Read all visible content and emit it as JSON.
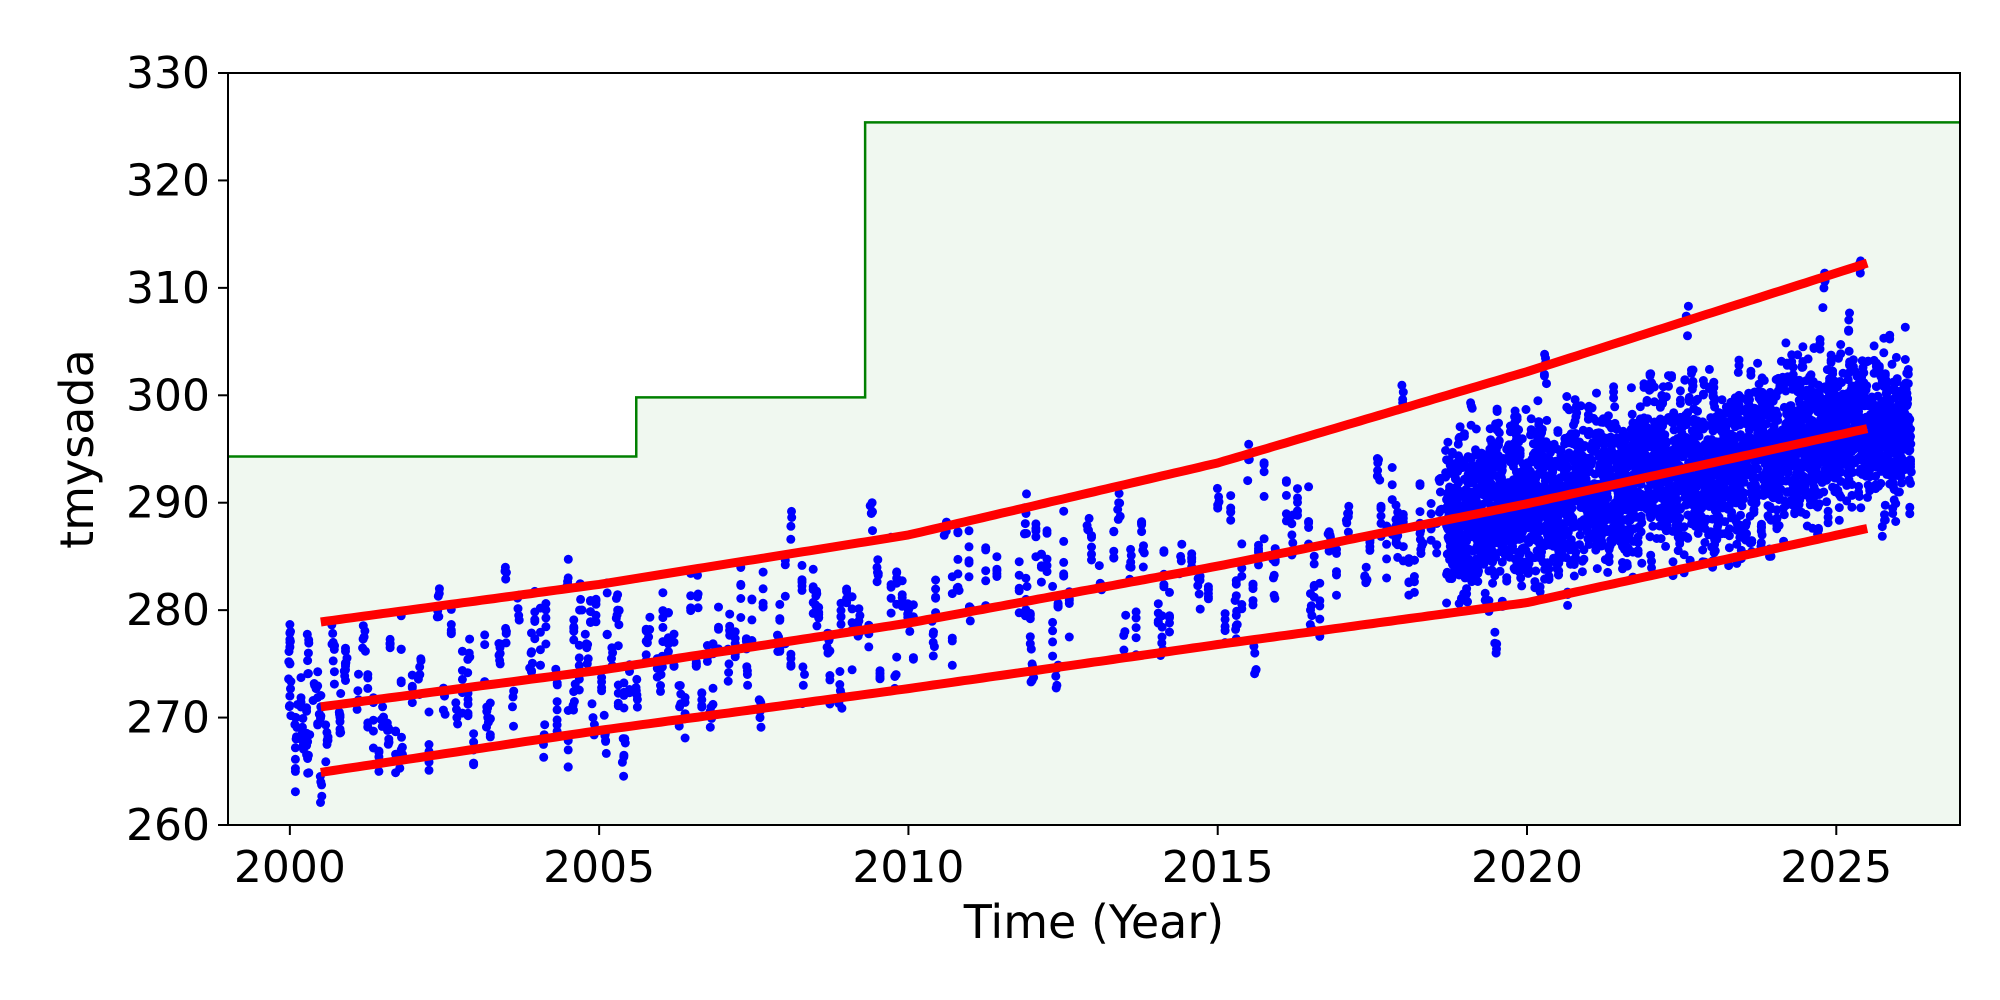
{
  "chart_data": {
    "type": "scatter",
    "title": "",
    "xlabel": "Time (Year)",
    "ylabel": "tmysada",
    "xlim": [
      1999.0,
      2027.0
    ],
    "ylim": [
      260,
      330
    ],
    "xticks": [
      2000,
      2005,
      2010,
      2015,
      2020,
      2025
    ],
    "yticks": [
      260,
      270,
      280,
      290,
      300,
      310,
      320,
      330
    ],
    "grid": false,
    "legend": "none",
    "colors": {
      "points": "#0000ff",
      "trend": "#ff0000",
      "limit_line": "#008000",
      "limit_fill": "#f0f8f0"
    },
    "limit_step": [
      {
        "x": 1999.0,
        "y": 294.3
      },
      {
        "x": 2005.6,
        "y": 294.3
      },
      {
        "x": 2005.6,
        "y": 299.8
      },
      {
        "x": 2009.3,
        "y": 299.8
      },
      {
        "x": 2009.3,
        "y": 325.4
      },
      {
        "x": 2027.0,
        "y": 325.4
      }
    ],
    "trend_lines": [
      {
        "x": [
          2000.5,
          2005,
          2010,
          2015,
          2020,
          2025.5
        ],
        "y": [
          278.9,
          282.4,
          287.0,
          293.7,
          302.2,
          312.3
        ]
      },
      {
        "x": [
          2000.5,
          2005,
          2010,
          2015,
          2020,
          2025.5
        ],
        "y": [
          271.0,
          274.4,
          278.8,
          284.1,
          289.9,
          296.9
        ]
      },
      {
        "x": [
          2000.5,
          2005,
          2010,
          2015,
          2020,
          2025.5
        ],
        "y": [
          264.9,
          268.8,
          272.7,
          276.8,
          280.7,
          287.6
        ]
      }
    ],
    "points_seed": 42,
    "points": [
      [
        2000.0,
        277.0
      ],
      [
        2000.0,
        272.0
      ],
      [
        2000.1,
        270.0
      ],
      [
        2000.2,
        268.5
      ],
      [
        2000.3,
        276.0
      ],
      [
        2000.3,
        266.5
      ],
      [
        2000.4,
        273.0
      ],
      [
        2000.5,
        264.0
      ],
      [
        2000.5,
        271.0
      ],
      [
        2000.6,
        267.5
      ],
      [
        2000.7,
        277.0
      ],
      [
        2000.8,
        270.5
      ],
      [
        2000.9,
        275.0
      ],
      [
        2001.1,
        272.5
      ],
      [
        2001.2,
        277.5
      ],
      [
        2001.5,
        271.0
      ],
      [
        2001.6,
        268.0
      ],
      [
        2001.8,
        267.0
      ],
      [
        2002.1,
        274.0
      ],
      [
        2002.4,
        281.3
      ],
      [
        2002.5,
        272.0
      ],
      [
        2002.7,
        270.0
      ],
      [
        2002.9,
        276.0
      ],
      [
        2003.2,
        270.0
      ],
      [
        2003.4,
        275.0
      ],
      [
        2003.5,
        283.5
      ],
      [
        2003.5,
        278.0
      ],
      [
        2003.6,
        271.0
      ],
      [
        2003.7,
        279.5
      ],
      [
        2003.9,
        276.0
      ],
      [
        2004.1,
        267.5
      ],
      [
        2004.3,
        274.5
      ],
      [
        2004.5,
        283.0
      ],
      [
        2004.6,
        271.5
      ],
      [
        2004.7,
        281.0
      ],
      [
        2004.8,
        276.5
      ],
      [
        2004.9,
        270.0
      ],
      [
        2005.1,
        268.5
      ],
      [
        2005.2,
        275.5
      ],
      [
        2005.3,
        280.0
      ],
      [
        2005.4,
        266.5
      ],
      [
        2005.6,
        272.5
      ],
      [
        2005.8,
        277.5
      ],
      [
        2006.0,
        274.0
      ],
      [
        2006.3,
        271.0
      ],
      [
        2006.6,
        281.5
      ],
      [
        2006.8,
        270.5
      ],
      [
        2007.1,
        275.0
      ],
      [
        2007.4,
        273.0
      ],
      [
        2007.6,
        270.0
      ],
      [
        2007.9,
        277.5
      ],
      [
        2008.1,
        287.8
      ],
      [
        2008.3,
        273.0
      ],
      [
        2008.5,
        280.5
      ],
      [
        2008.7,
        276.0
      ],
      [
        2008.9,
        272.5
      ],
      [
        2009.2,
        279.0
      ],
      [
        2009.4,
        289.0
      ],
      [
        2009.5,
        283.5
      ],
      [
        2009.8,
        274.0
      ],
      [
        2010.0,
        280.0
      ],
      [
        2010.4,
        277.0
      ],
      [
        2010.6,
        287.5
      ],
      [
        2010.8,
        282.0
      ],
      [
        2011.0,
        279.0
      ],
      [
        2011.9,
        289.0
      ],
      [
        2011.9,
        281.0
      ],
      [
        2012.0,
        275.0
      ],
      [
        2012.4,
        273.0
      ],
      [
        2012.9,
        287.5
      ],
      [
        2013.1,
        282.5
      ],
      [
        2013.4,
        290.0
      ],
      [
        2013.5,
        278.0
      ],
      [
        2013.6,
        284.0
      ],
      [
        2013.8,
        286.0
      ],
      [
        2014.1,
        277.5
      ],
      [
        2014.4,
        285.0
      ],
      [
        2014.7,
        281.5
      ],
      [
        2015.0,
        289.5
      ],
      [
        2015.3,
        279.5
      ],
      [
        2015.5,
        294.0
      ],
      [
        2015.6,
        276.0
      ],
      [
        2015.9,
        283.0
      ],
      [
        2016.2,
        287.0
      ],
      [
        2016.5,
        280.0
      ],
      [
        2016.8,
        285.5
      ],
      [
        2017.1,
        289.0
      ],
      [
        2017.4,
        284.0
      ],
      [
        2017.6,
        294.0
      ],
      [
        2017.9,
        288.0
      ],
      [
        2018.0,
        300.3
      ],
      [
        2018.3,
        286.0
      ],
      [
        2018.6,
        291.0
      ],
      [
        2018.7,
        294.0
      ],
      [
        2018.8,
        288.0
      ],
      [
        2018.9,
        296.0
      ],
      [
        2019.0,
        283.0
      ],
      [
        2019.1,
        299.0
      ],
      [
        2019.2,
        291.0
      ],
      [
        2019.3,
        286.0
      ],
      [
        2019.4,
        295.0
      ],
      [
        2019.5,
        276.0
      ],
      [
        2019.6,
        293.0
      ],
      [
        2019.7,
        289.0
      ],
      [
        2019.8,
        298.0
      ],
      [
        2019.9,
        284.0
      ],
      [
        2020.0,
        292.0
      ],
      [
        2020.1,
        287.0
      ],
      [
        2020.2,
        296.0
      ],
      [
        2020.3,
        303.0
      ],
      [
        2020.4,
        290.0
      ],
      [
        2020.5,
        285.0
      ],
      [
        2020.6,
        294.0
      ],
      [
        2020.8,
        299.0
      ],
      [
        2021.0,
        288.0
      ],
      [
        2021.2,
        293.0
      ],
      [
        2021.4,
        297.0
      ],
      [
        2021.6,
        286.0
      ],
      [
        2021.8,
        291.0
      ],
      [
        2022.0,
        302.0
      ],
      [
        2022.2,
        289.0
      ],
      [
        2022.4,
        295.0
      ],
      [
        2022.6,
        307.0
      ],
      [
        2022.8,
        290.0
      ],
      [
        2023.0,
        284.0
      ],
      [
        2023.2,
        296.0
      ],
      [
        2023.4,
        292.0
      ],
      [
        2023.6,
        299.0
      ],
      [
        2023.8,
        287.0
      ],
      [
        2024.0,
        294.0
      ],
      [
        2024.2,
        303.0
      ],
      [
        2024.4,
        291.0
      ],
      [
        2024.6,
        297.0
      ],
      [
        2024.8,
        310.0
      ],
      [
        2025.0,
        293.0
      ],
      [
        2025.2,
        306.0
      ],
      [
        2025.4,
        312.0
      ],
      [
        2025.6,
        295.0
      ],
      [
        2025.8,
        301.0
      ],
      [
        2026.0,
        298.0
      ],
      [
        2026.2,
        294.0
      ]
    ]
  }
}
